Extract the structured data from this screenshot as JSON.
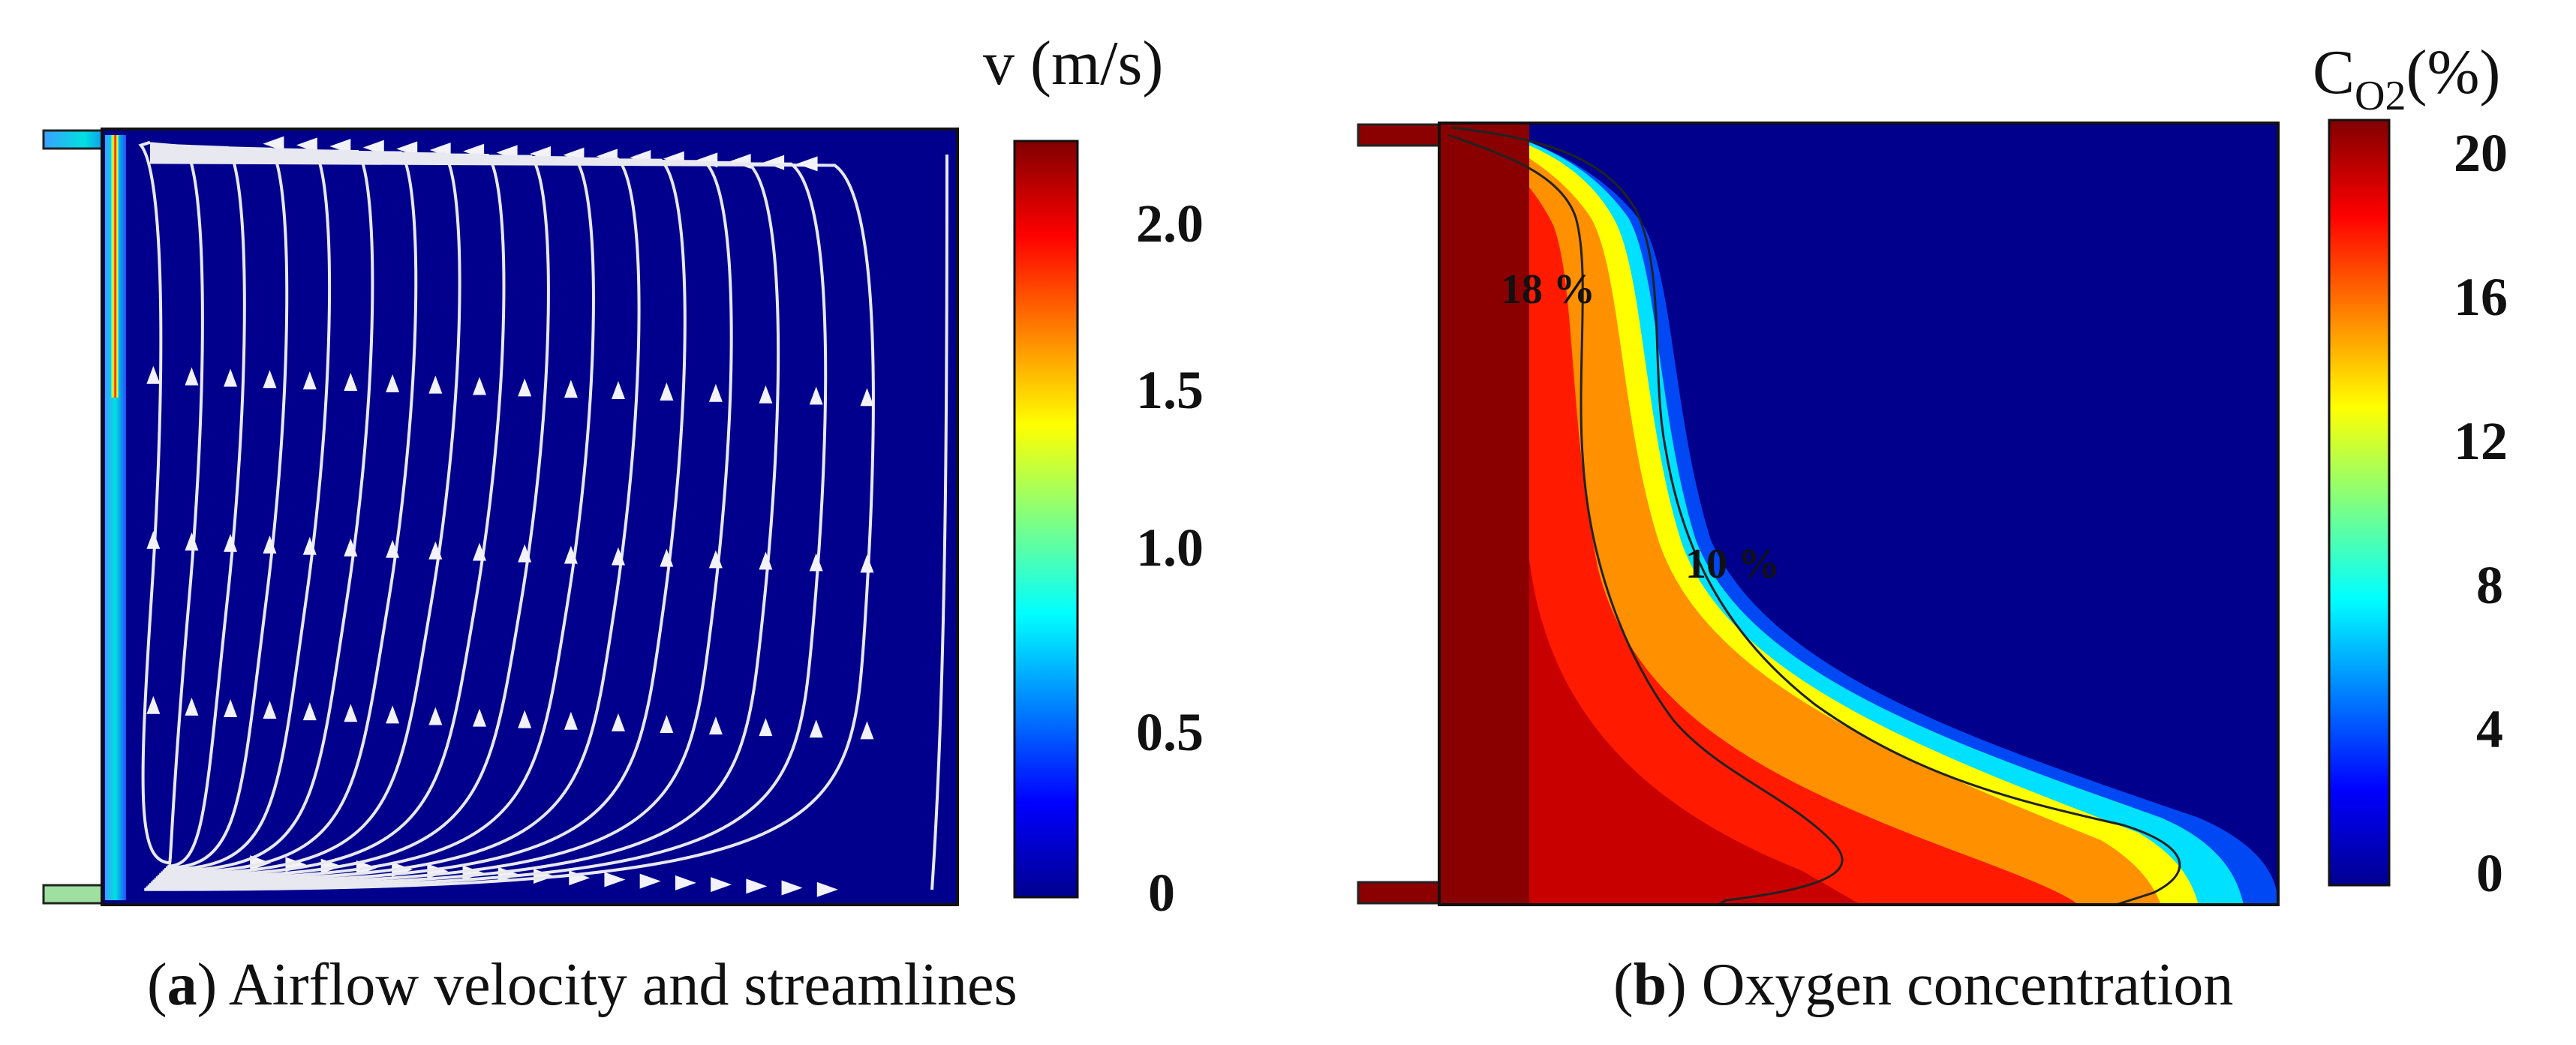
{
  "panel_a": {
    "colorbar_title": "v (m/s)",
    "colorbar_ticks": [
      "2.0",
      "1.5",
      "1.0",
      "0.5",
      "0"
    ],
    "caption_letter": "a",
    "caption_text": "Airflow velocity and streamlines"
  },
  "panel_b": {
    "colorbar_title_main": "C",
    "colorbar_title_sub": "O2",
    "colorbar_title_unit": "(%)",
    "colorbar_ticks": [
      "20",
      "16",
      "12",
      "8",
      "4",
      "0"
    ],
    "contour_labels": [
      "18 %",
      "10 %"
    ],
    "caption_letter": "b",
    "caption_text": "Oxygen concentration"
  },
  "colors": {
    "background_field": "#00008c",
    "streamline": "#e8e8f0",
    "jet_dark_red": "#800000",
    "jet_red": "#ff0000",
    "jet_yellow": "#ffff00",
    "jet_cyan": "#00ffff",
    "jet_blue": "#0000ff",
    "jet_dark_blue": "#00008f"
  }
}
